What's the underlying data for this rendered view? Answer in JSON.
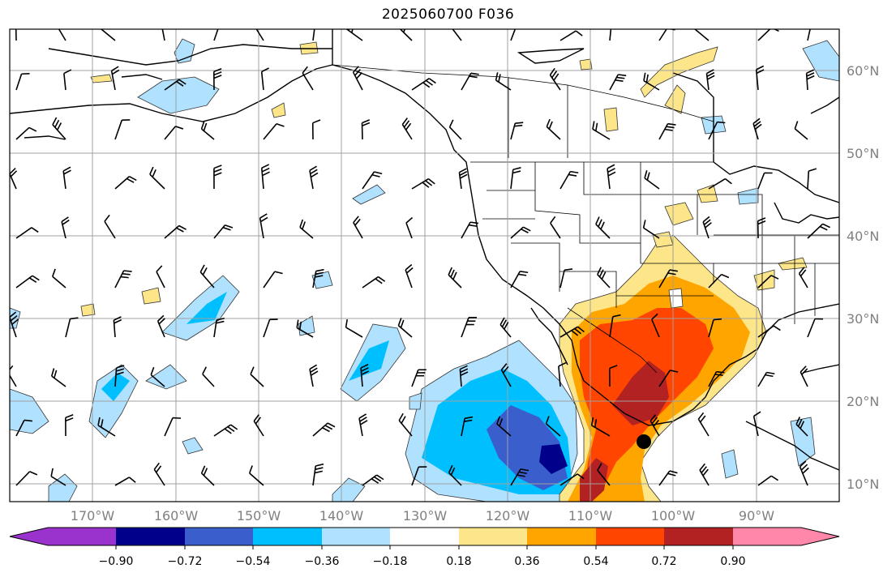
{
  "title": "2025060700 F036",
  "lat_labels": [
    "60°N",
    "50°N",
    "40°N",
    "30°N",
    "20°N",
    "10°N"
  ],
  "lon_labels": [
    "170°W",
    "160°W",
    "150°W",
    "140°W",
    "130°W",
    "120°W",
    "110°W",
    "100°W",
    "90°W"
  ],
  "colorbar": {
    "tick_labels": [
      "−0.90",
      "−0.72",
      "−0.54",
      "−0.36",
      "−0.18",
      "0.18",
      "0.36",
      "0.54",
      "0.72",
      "0.90"
    ],
    "colors": [
      "#9a32cd",
      "#00008b",
      "#3a5fcd",
      "#00bfff",
      "#b0e2ff",
      "#ffffff",
      "#fde68a",
      "#ffa500",
      "#ff4500",
      "#b22222",
      "#ff88aa"
    ]
  },
  "marker": {
    "name": "station-marker"
  }
}
